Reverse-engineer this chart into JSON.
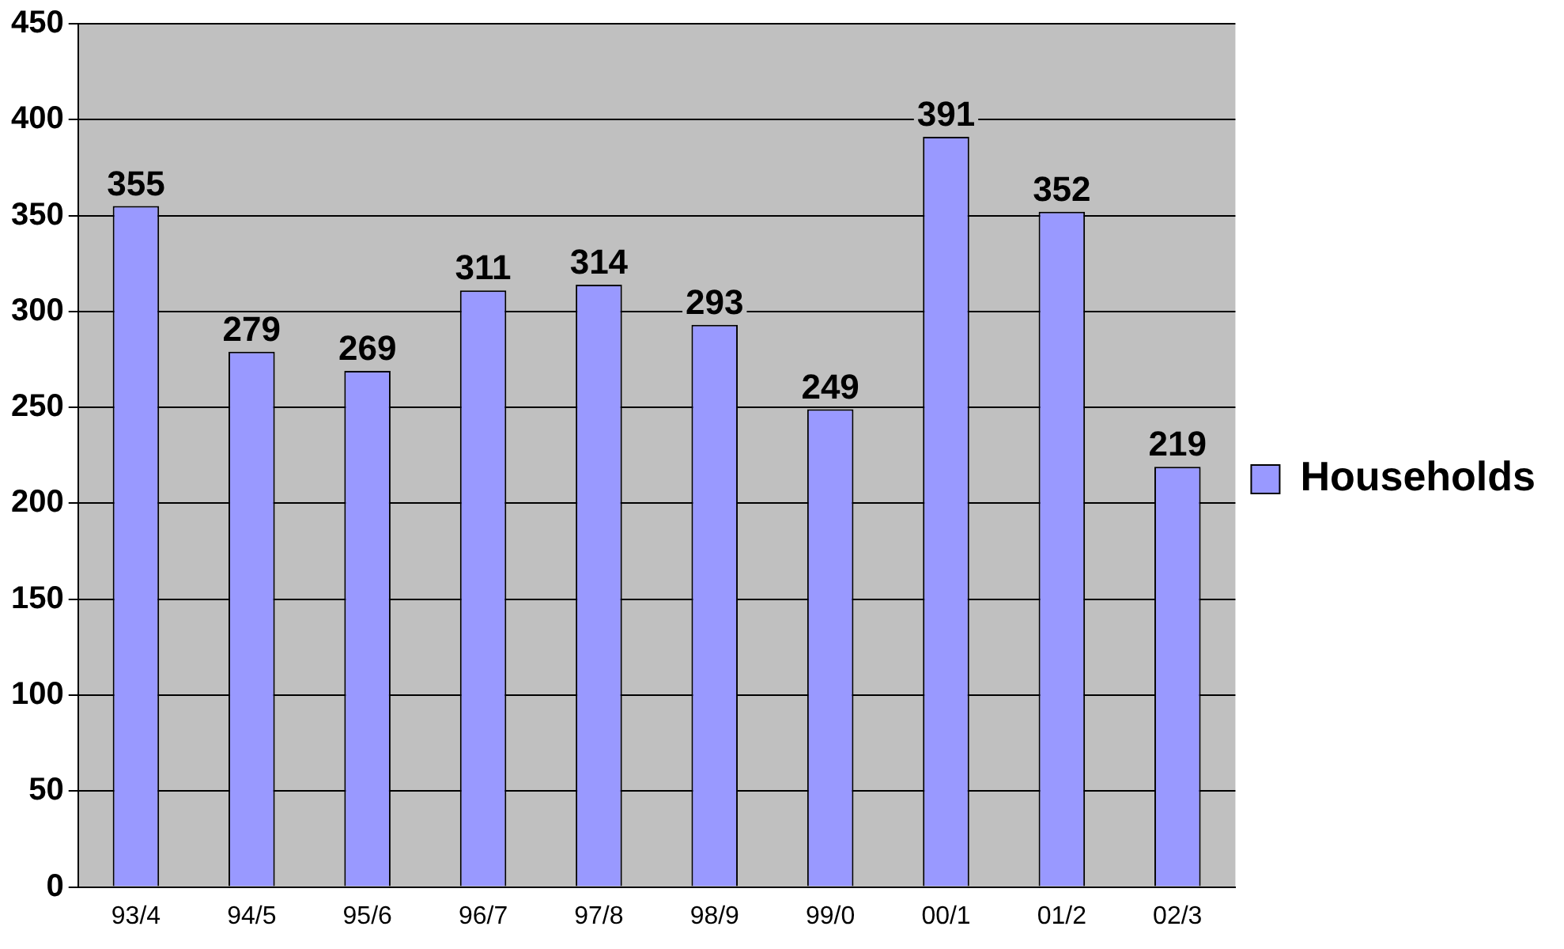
{
  "chart_data": {
    "type": "bar",
    "categories": [
      "93/4",
      "94/5",
      "95/6",
      "96/7",
      "97/8",
      "98/9",
      "99/0",
      "00/1",
      "01/2",
      "02/3"
    ],
    "series": [
      {
        "name": "Households",
        "color": "#9999ff",
        "values": [
          355,
          279,
          269,
          311,
          314,
          293,
          249,
          391,
          352,
          219
        ]
      }
    ],
    "ylim": [
      0,
      450
    ],
    "yticks": [
      0,
      50,
      100,
      150,
      200,
      250,
      300,
      350,
      400,
      450
    ],
    "grid": "y",
    "legend": "right",
    "data_labels": true
  }
}
